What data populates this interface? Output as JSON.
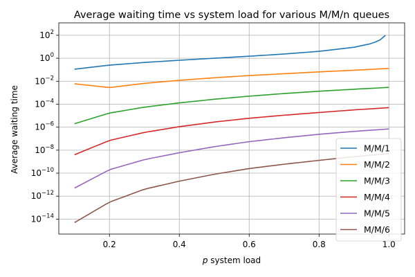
{
  "chart_data": {
    "type": "line",
    "title": "Average waiting time vs system load for various M/M/n queues",
    "xlabel_symbol": "p",
    "xlabel_text": " system load",
    "ylabel": "Average waiting time",
    "xlim": [
      0.055,
      1.045
    ],
    "ylim": [
      5e-16,
      1200
    ],
    "yscale": "log",
    "grid": true,
    "legend_position": "lower-right",
    "x_ticks": [
      0.2,
      0.4,
      0.6,
      0.8,
      1.0
    ],
    "x_tick_labels": [
      "0.2",
      "0.4",
      "0.6",
      "0.8",
      "1.0"
    ],
    "y_ticks": [
      {
        "exp": "2",
        "value": 100
      },
      {
        "exp": "0",
        "value": 1
      },
      {
        "exp": "−2",
        "value": 0.01
      },
      {
        "exp": "−4",
        "value": 0.0001
      },
      {
        "exp": "−6",
        "value": 1e-06
      },
      {
        "exp": "−8",
        "value": 1e-08
      },
      {
        "exp": "−10",
        "value": 1e-10
      },
      {
        "exp": "−12",
        "value": 1e-12
      },
      {
        "exp": "−14",
        "value": 1e-14
      }
    ],
    "series": [
      {
        "name": "M/M/1",
        "color": "#1f77b4",
        "x": [
          0.1,
          0.2,
          0.3,
          0.4,
          0.5,
          0.6,
          0.7,
          0.8,
          0.9,
          0.95,
          0.97,
          0.98,
          0.99
        ],
        "y": [
          0.111,
          0.25,
          0.429,
          0.667,
          1.0,
          1.5,
          2.33,
          4.0,
          9.0,
          19.0,
          32.3,
          49.0,
          99.0
        ]
      },
      {
        "name": "M/M/2",
        "color": "#ff7f0e",
        "x": [
          0.1,
          0.2,
          0.3,
          0.4,
          0.5,
          0.6,
          0.7,
          0.8,
          0.9,
          1.0
        ],
        "y": [
          0.006,
          0.0028,
          0.0065,
          0.012,
          0.02,
          0.031,
          0.045,
          0.065,
          0.09,
          0.13
        ]
      },
      {
        "name": "M/M/3",
        "color": "#2ca02c",
        "x": [
          0.1,
          0.2,
          0.3,
          0.4,
          0.5,
          0.6,
          0.7,
          0.8,
          0.9,
          1.0
        ],
        "y": [
          2e-06,
          1.7e-05,
          5.5e-05,
          0.00013,
          0.00027,
          0.0005,
          0.00085,
          0.00135,
          0.002,
          0.0029
        ]
      },
      {
        "name": "M/M/4",
        "color": "#d62728",
        "x": [
          0.1,
          0.2,
          0.3,
          0.4,
          0.5,
          0.6,
          0.7,
          0.8,
          0.9,
          1.0
        ],
        "y": [
          4e-09,
          7e-08,
          3.5e-07,
          1.1e-06,
          2.8e-06,
          6e-06,
          1.1e-05,
          1.9e-05,
          3.2e-05,
          5e-05
        ]
      },
      {
        "name": "M/M/5",
        "color": "#9467bd",
        "x": [
          0.1,
          0.2,
          0.3,
          0.4,
          0.5,
          0.6,
          0.7,
          0.8,
          0.9,
          1.0
        ],
        "y": [
          5e-12,
          2e-10,
          1.5e-09,
          6e-09,
          2e-08,
          5.5e-08,
          1.2e-07,
          2.4e-07,
          4.3e-07,
          7e-07
        ]
      },
      {
        "name": "M/M/6",
        "color": "#8c564b",
        "x": [
          0.1,
          0.2,
          0.3,
          0.4,
          0.5,
          0.6,
          0.7,
          0.8,
          0.9,
          1.0
        ],
        "y": [
          5e-15,
          3e-13,
          4e-12,
          2e-11,
          8e-11,
          2.5e-10,
          6e-10,
          1.3e-09,
          2.7e-09,
          5e-09
        ]
      }
    ]
  }
}
